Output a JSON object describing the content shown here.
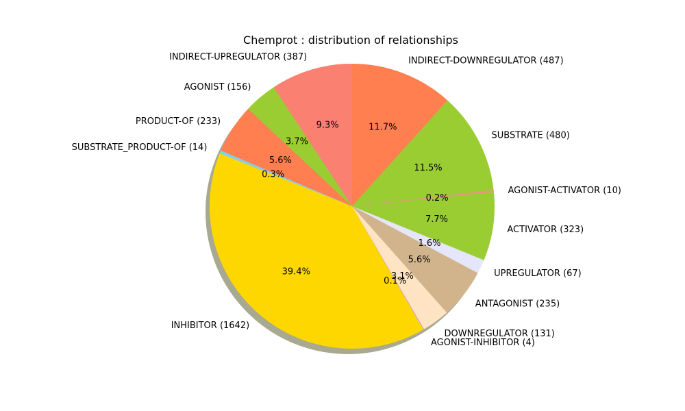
{
  "chart_data": {
    "type": "pie",
    "title": "Chemprot : distribution of relationships",
    "start_angle_deg": 90,
    "direction": "clockwise",
    "shadow": true,
    "slices": [
      {
        "label": "INDIRECT-DOWNREGULATOR  (487)",
        "value": 487,
        "pct_label": "11.7%",
        "color": "#ff7f50"
      },
      {
        "label": "SUBSTRATE  (480)",
        "value": 480,
        "pct_label": "11.5%",
        "color": "#9acd32"
      },
      {
        "label": "AGONIST-ACTIVATOR  (10)",
        "value": 10,
        "pct_label": "0.2%",
        "color": "#e9967a"
      },
      {
        "label": "ACTIVATOR  (323)",
        "value": 323,
        "pct_label": "7.7%",
        "color": "#9acd32"
      },
      {
        "label": "UPREGULATOR  (67)",
        "value": 67,
        "pct_label": "1.6%",
        "color": "#e6e6fa"
      },
      {
        "label": "ANTAGONIST  (235)",
        "value": 235,
        "pct_label": "5.6%",
        "color": "#d2b48c"
      },
      {
        "label": "DOWNREGULATOR  (131)",
        "value": 131,
        "pct_label": "3.1%",
        "color": "#ffe4c4"
      },
      {
        "label": "AGONIST-INHIBITOR  (4)",
        "value": 4,
        "pct_label": "0.1%",
        "color": "#dda0dd"
      },
      {
        "label": "INHIBITOR  (1642)",
        "value": 1642,
        "pct_label": "39.4%",
        "color": "#ffd700"
      },
      {
        "label": "SUBSTRATE_PRODUCT-OF  (14)",
        "value": 14,
        "pct_label": "0.3%",
        "color": "#87ceeb"
      },
      {
        "label": "PRODUCT-OF  (233)",
        "value": 233,
        "pct_label": "5.6%",
        "color": "#ff7f50"
      },
      {
        "label": "AGONIST  (156)",
        "value": 156,
        "pct_label": "3.7%",
        "color": "#9acd32"
      },
      {
        "label": "INDIRECT-UPREGULATOR  (387)",
        "value": 387,
        "pct_label": "9.3%",
        "color": "#fa8072"
      }
    ]
  }
}
